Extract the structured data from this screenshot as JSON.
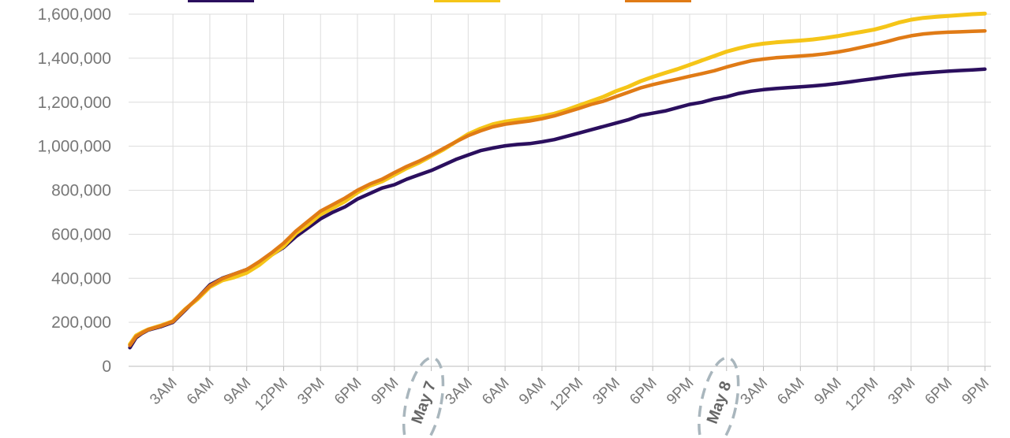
{
  "chart_data": {
    "type": "line",
    "y_ticks": [
      "0",
      "200,000",
      "400,000",
      "600,000",
      "800,000",
      "1,000,000",
      "1,200,000",
      "1,400,000",
      "1,600,000"
    ],
    "ylim": [
      0,
      1600000
    ],
    "x_time_labels": [
      "3AM",
      "6AM",
      "9AM",
      "12PM",
      "3PM",
      "6PM",
      "9PM",
      "3AM",
      "6AM",
      "9AM",
      "12PM",
      "3PM",
      "6PM",
      "9PM",
      "3AM",
      "6AM",
      "9AM",
      "12PM",
      "3PM",
      "6PM",
      "9PM"
    ],
    "x_date_labels": [
      "May 7",
      "May 8"
    ],
    "x_unit": "hours from midnight, May 6",
    "xlim": [
      -0.6,
      69.5
    ],
    "grid": true,
    "series": [
      {
        "color": "#2b0f5e",
        "points": [
          [
            -0.5,
            85000
          ],
          [
            0,
            130000
          ],
          [
            0.5,
            150000
          ],
          [
            1,
            165000
          ],
          [
            2,
            180000
          ],
          [
            3,
            200000
          ],
          [
            4,
            255000
          ],
          [
            5,
            310000
          ],
          [
            6,
            370000
          ],
          [
            7,
            400000
          ],
          [
            8,
            420000
          ],
          [
            9,
            440000
          ],
          [
            10,
            470000
          ],
          [
            11,
            505000
          ],
          [
            12,
            540000
          ],
          [
            13,
            590000
          ],
          [
            14,
            630000
          ],
          [
            15,
            670000
          ],
          [
            16,
            700000
          ],
          [
            17,
            725000
          ],
          [
            18,
            760000
          ],
          [
            19,
            785000
          ],
          [
            20,
            810000
          ],
          [
            21,
            825000
          ],
          [
            22,
            850000
          ],
          [
            23,
            870000
          ],
          [
            24,
            890000
          ],
          [
            25,
            915000
          ],
          [
            26,
            940000
          ],
          [
            27,
            960000
          ],
          [
            28,
            980000
          ],
          [
            29,
            992000
          ],
          [
            30,
            1002000
          ],
          [
            31,
            1008000
          ],
          [
            32,
            1012000
          ],
          [
            33,
            1020000
          ],
          [
            34,
            1030000
          ],
          [
            35,
            1045000
          ],
          [
            36,
            1060000
          ],
          [
            37,
            1075000
          ],
          [
            38,
            1090000
          ],
          [
            39,
            1105000
          ],
          [
            40,
            1120000
          ],
          [
            41,
            1140000
          ],
          [
            42,
            1150000
          ],
          [
            43,
            1160000
          ],
          [
            44,
            1175000
          ],
          [
            45,
            1190000
          ],
          [
            46,
            1200000
          ],
          [
            47,
            1215000
          ],
          [
            48,
            1225000
          ],
          [
            49,
            1240000
          ],
          [
            50,
            1250000
          ],
          [
            51,
            1257000
          ],
          [
            52,
            1262000
          ],
          [
            53,
            1266000
          ],
          [
            54,
            1270000
          ],
          [
            55,
            1274000
          ],
          [
            56,
            1279000
          ],
          [
            57,
            1285000
          ],
          [
            58,
            1292000
          ],
          [
            59,
            1300000
          ],
          [
            60,
            1307000
          ],
          [
            61,
            1315000
          ],
          [
            62,
            1322000
          ],
          [
            63,
            1328000
          ],
          [
            64,
            1333000
          ],
          [
            65,
            1337000
          ],
          [
            66,
            1341000
          ],
          [
            67,
            1344000
          ],
          [
            68,
            1347000
          ],
          [
            69,
            1350000
          ]
        ]
      },
      {
        "color": "#f5c518",
        "points": [
          [
            -0.5,
            100000
          ],
          [
            0,
            140000
          ],
          [
            0.5,
            155000
          ],
          [
            1,
            168000
          ],
          [
            2,
            185000
          ],
          [
            3,
            205000
          ],
          [
            4,
            260000
          ],
          [
            5,
            305000
          ],
          [
            6,
            360000
          ],
          [
            7,
            390000
          ],
          [
            8,
            405000
          ],
          [
            9,
            425000
          ],
          [
            10,
            460000
          ],
          [
            11,
            505000
          ],
          [
            12,
            545000
          ],
          [
            13,
            605000
          ],
          [
            14,
            645000
          ],
          [
            15,
            690000
          ],
          [
            16,
            720000
          ],
          [
            17,
            750000
          ],
          [
            18,
            790000
          ],
          [
            19,
            820000
          ],
          [
            20,
            840000
          ],
          [
            21,
            870000
          ],
          [
            22,
            900000
          ],
          [
            23,
            925000
          ],
          [
            24,
            955000
          ],
          [
            25,
            985000
          ],
          [
            26,
            1020000
          ],
          [
            27,
            1055000
          ],
          [
            28,
            1080000
          ],
          [
            29,
            1100000
          ],
          [
            30,
            1112000
          ],
          [
            31,
            1120000
          ],
          [
            32,
            1127000
          ],
          [
            33,
            1136000
          ],
          [
            34,
            1148000
          ],
          [
            35,
            1165000
          ],
          [
            36,
            1185000
          ],
          [
            37,
            1205000
          ],
          [
            38,
            1225000
          ],
          [
            39,
            1250000
          ],
          [
            40,
            1270000
          ],
          [
            41,
            1295000
          ],
          [
            42,
            1315000
          ],
          [
            43,
            1333000
          ],
          [
            44,
            1350000
          ],
          [
            45,
            1370000
          ],
          [
            46,
            1390000
          ],
          [
            47,
            1410000
          ],
          [
            48,
            1430000
          ],
          [
            49,
            1445000
          ],
          [
            50,
            1458000
          ],
          [
            51,
            1466000
          ],
          [
            52,
            1472000
          ],
          [
            53,
            1476000
          ],
          [
            54,
            1480000
          ],
          [
            55,
            1485000
          ],
          [
            56,
            1492000
          ],
          [
            57,
            1500000
          ],
          [
            58,
            1510000
          ],
          [
            59,
            1520000
          ],
          [
            60,
            1530000
          ],
          [
            61,
            1545000
          ],
          [
            62,
            1562000
          ],
          [
            63,
            1575000
          ],
          [
            64,
            1583000
          ],
          [
            65,
            1588000
          ],
          [
            66,
            1592000
          ],
          [
            67,
            1596000
          ],
          [
            68,
            1600000
          ],
          [
            69,
            1603000
          ]
        ]
      },
      {
        "color": "#e07b16",
        "points": [
          [
            -0.5,
            95000
          ],
          [
            0,
            135000
          ],
          [
            0.5,
            152000
          ],
          [
            1,
            167000
          ],
          [
            2,
            183000
          ],
          [
            3,
            203000
          ],
          [
            4,
            258000
          ],
          [
            5,
            310000
          ],
          [
            6,
            365000
          ],
          [
            7,
            398000
          ],
          [
            8,
            420000
          ],
          [
            9,
            440000
          ],
          [
            10,
            475000
          ],
          [
            11,
            515000
          ],
          [
            12,
            560000
          ],
          [
            13,
            615000
          ],
          [
            14,
            660000
          ],
          [
            15,
            705000
          ],
          [
            16,
            735000
          ],
          [
            17,
            765000
          ],
          [
            18,
            800000
          ],
          [
            19,
            828000
          ],
          [
            20,
            850000
          ],
          [
            21,
            880000
          ],
          [
            22,
            908000
          ],
          [
            23,
            932000
          ],
          [
            24,
            960000
          ],
          [
            25,
            990000
          ],
          [
            26,
            1020000
          ],
          [
            27,
            1048000
          ],
          [
            28,
            1070000
          ],
          [
            29,
            1088000
          ],
          [
            30,
            1100000
          ],
          [
            31,
            1108000
          ],
          [
            32,
            1115000
          ],
          [
            33,
            1125000
          ],
          [
            34,
            1138000
          ],
          [
            35,
            1155000
          ],
          [
            36,
            1172000
          ],
          [
            37,
            1190000
          ],
          [
            38,
            1205000
          ],
          [
            39,
            1225000
          ],
          [
            40,
            1245000
          ],
          [
            41,
            1265000
          ],
          [
            42,
            1280000
          ],
          [
            43,
            1293000
          ],
          [
            44,
            1305000
          ],
          [
            45,
            1318000
          ],
          [
            46,
            1330000
          ],
          [
            47,
            1343000
          ],
          [
            48,
            1360000
          ],
          [
            49,
            1375000
          ],
          [
            50,
            1388000
          ],
          [
            51,
            1396000
          ],
          [
            52,
            1402000
          ],
          [
            53,
            1406000
          ],
          [
            54,
            1410000
          ],
          [
            55,
            1414000
          ],
          [
            56,
            1420000
          ],
          [
            57,
            1428000
          ],
          [
            58,
            1438000
          ],
          [
            59,
            1450000
          ],
          [
            60,
            1462000
          ],
          [
            61,
            1475000
          ],
          [
            62,
            1490000
          ],
          [
            63,
            1502000
          ],
          [
            64,
            1510000
          ],
          [
            65,
            1515000
          ],
          [
            66,
            1518000
          ],
          [
            67,
            1520000
          ],
          [
            68,
            1522000
          ],
          [
            69,
            1524000
          ]
        ]
      }
    ]
  },
  "colors": {
    "grid": "#dcdcdc",
    "axis_text": "#777777",
    "date_text": "#666666",
    "date_circle": "#a9b6bd"
  }
}
